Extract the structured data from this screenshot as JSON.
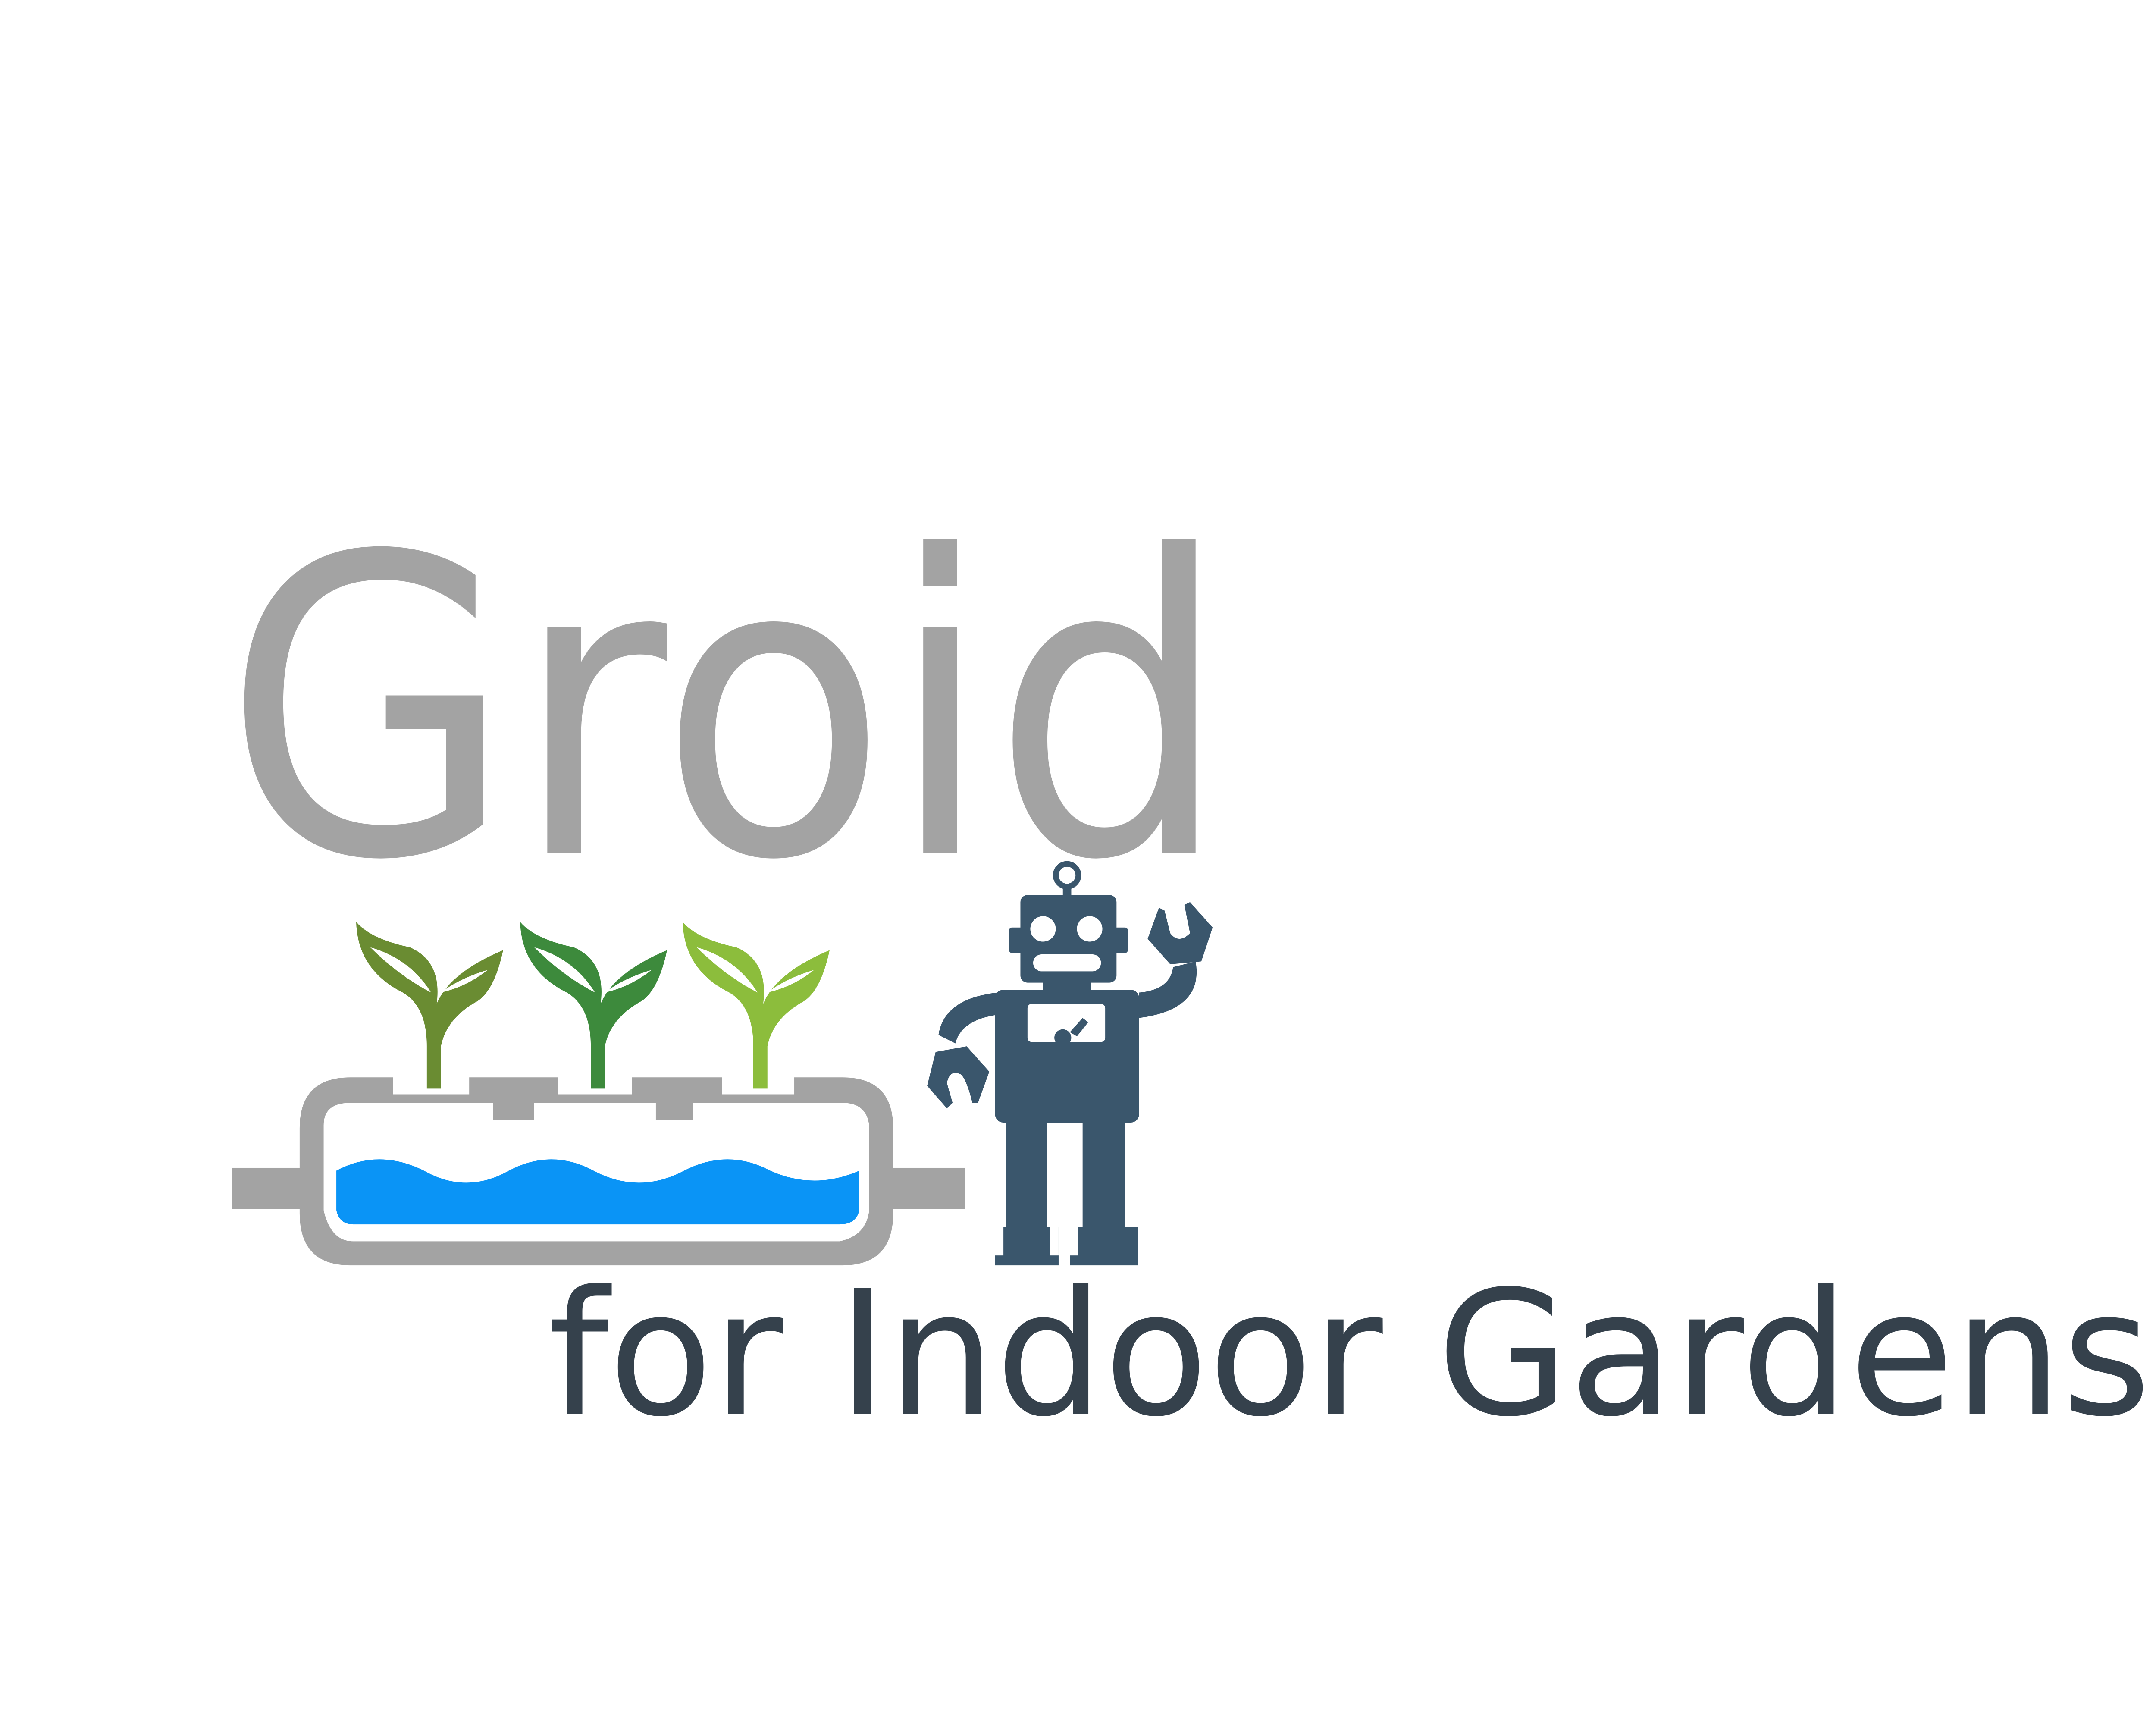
{
  "logo": {
    "title": "Groid",
    "tagline": "for Indoor Gardens"
  }
}
